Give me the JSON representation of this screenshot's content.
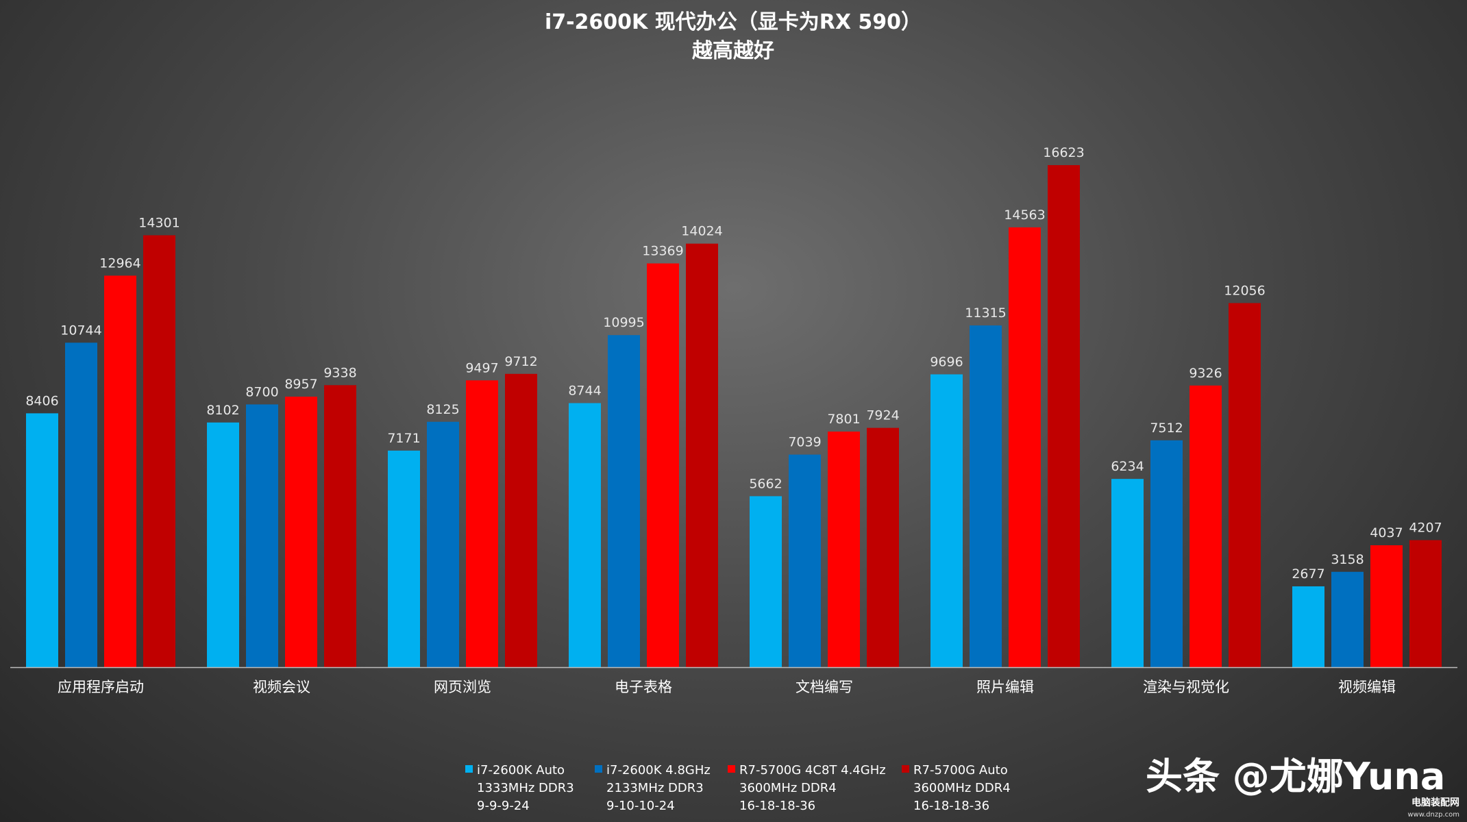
{
  "chart_data": {
    "type": "bar",
    "title": "i7-2600K 现代办公（显卡为RX 590）",
    "subtitle": "越高越好",
    "xlabel": "",
    "ylabel": "",
    "ylim": [
      0,
      17000
    ],
    "grid": false,
    "legend_position": "bottom",
    "categories": [
      "应用程序启动",
      "视频会议",
      "网页浏览",
      "电子表格",
      "文档编写",
      "照片编辑",
      "渲染与视觉化",
      "视频编辑"
    ],
    "series": [
      {
        "name": "i7-2600K Auto 1333MHz DDR3 9-9-9-24",
        "legend_lines": [
          "i7-2600K Auto",
          "1333MHz DDR3",
          "9-9-9-24"
        ],
        "color": "#00b0f0",
        "values": [
          8406,
          8102,
          7171,
          8744,
          5662,
          9696,
          6234,
          2677
        ]
      },
      {
        "name": "i7-2600K 4.8GHz 2133MHz DDR3 9-10-10-24",
        "legend_lines": [
          "i7-2600K 4.8GHz",
          "2133MHz DDR3",
          "9-10-10-24"
        ],
        "color": "#0070c0",
        "values": [
          10744,
          8700,
          8125,
          10995,
          7039,
          11315,
          7512,
          3158
        ]
      },
      {
        "name": "R7-5700G 4C8T 4.4GHz 3600MHz DDR4 16-18-18-36",
        "legend_lines": [
          "R7-5700G 4C8T 4.4GHz",
          "3600MHz DDR4",
          "16-18-18-36"
        ],
        "color": "#ff0000",
        "values": [
          12964,
          8957,
          9497,
          13369,
          7801,
          14563,
          9326,
          4037
        ]
      },
      {
        "name": "R7-5700G Auto 3600MHz DDR4 16-18-18-36",
        "legend_lines": [
          "R7-5700G Auto",
          "3600MHz DDR4",
          "16-18-18-36"
        ],
        "color": "#c00000",
        "values": [
          14301,
          9338,
          9712,
          14024,
          7924,
          16623,
          12056,
          4207
        ]
      }
    ]
  },
  "watermark": {
    "text": "头条 @尤娜Yuna",
    "site_name": "电脑装配网",
    "site_url": "www.dnzp.com"
  }
}
